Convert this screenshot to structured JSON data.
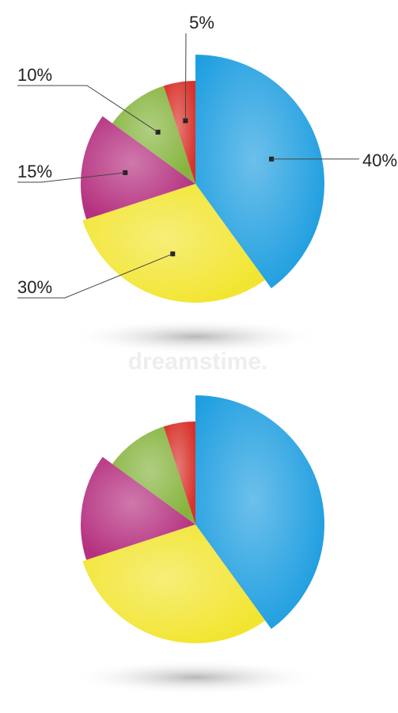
{
  "chart_data": [
    {
      "type": "pie",
      "values": [
        40,
        30,
        15,
        10,
        5
      ],
      "value_labels": [
        "40%",
        "30%",
        "15%",
        "10%",
        "5%"
      ],
      "colors": [
        "#1e9ee0",
        "#f2e530",
        "#b5307f",
        "#86b43e",
        "#d8322a"
      ]
    },
    {
      "type": "pie",
      "values": [
        40,
        30,
        15,
        10,
        5
      ],
      "colors": [
        "#1e9ee0",
        "#f2e530",
        "#b5307f",
        "#86b43e",
        "#d8322a"
      ]
    }
  ],
  "watermark": "dreamstime."
}
